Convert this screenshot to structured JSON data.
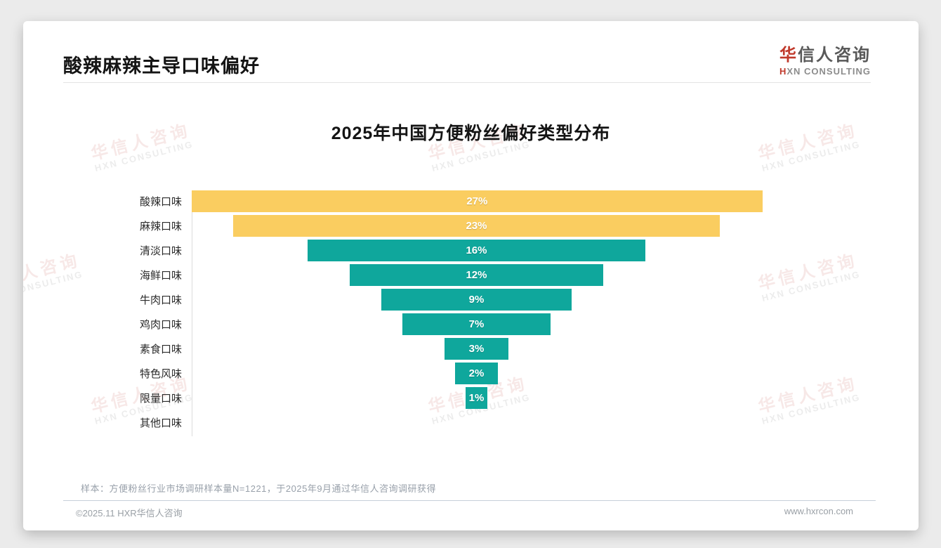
{
  "page": {
    "header": {
      "title": "酸辣麻辣主导口味偏好"
    },
    "logo": {
      "name_accent": "华",
      "name_rest": "信人咨询",
      "tagline_accent": "H",
      "tagline_rest": "XN CONSULTING"
    },
    "watermark": {
      "line1": "华信人咨询",
      "line2": "HXN CONSULTING"
    },
    "footnote": "样本：方便粉丝行业市场调研样本量N=1221，于2025年9月通过华信人咨询调研获得",
    "footer": {
      "left": "©2025.11 HXR华信人咨询",
      "right": "www.hxrcon.com"
    }
  },
  "chart_data": {
    "type": "bar",
    "subtype": "horizontal-centered-funnel",
    "title": "2025年中国方便粉丝偏好类型分布",
    "categories": [
      "酸辣口味",
      "麻辣口味",
      "清淡口味",
      "海鲜口味",
      "牛肉口味",
      "鸡肉口味",
      "素食口味",
      "特色风味",
      "限量口味",
      "其他口味"
    ],
    "values": [
      27,
      23,
      16,
      12,
      9,
      7,
      3,
      2,
      1,
      0
    ],
    "value_labels": [
      "27%",
      "23%",
      "16%",
      "12%",
      "9%",
      "7%",
      "3%",
      "2%",
      "1%",
      ""
    ],
    "unit": "%",
    "xlim": [
      0,
      30
    ],
    "grid": "off",
    "legend": "none",
    "highlight_rows": [
      0,
      1
    ],
    "colors": {
      "highlight": "#FACD60",
      "base": "#0FA79C",
      "value_text": "#FFFFFF"
    }
  }
}
